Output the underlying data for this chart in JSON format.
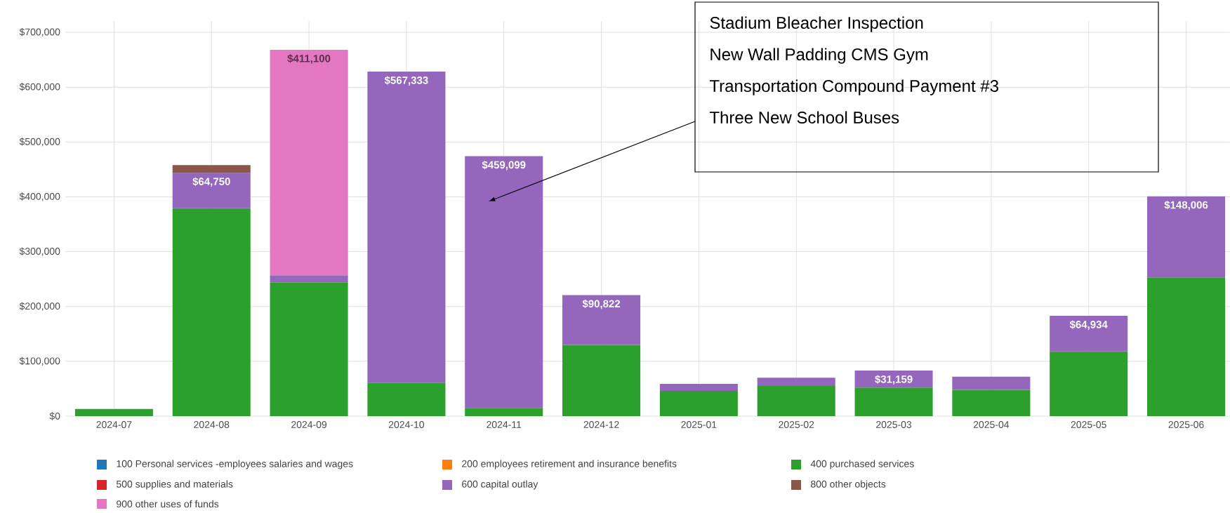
{
  "chart_data": {
    "type": "bar",
    "stacked": true,
    "grid": true,
    "legend": "bottom",
    "categories": [
      "2024-07",
      "2024-08",
      "2024-09",
      "2024-10",
      "2024-11",
      "2024-12",
      "2025-01",
      "2025-02",
      "2025-03",
      "2025-04",
      "2025-05",
      "2025-06"
    ],
    "ylim": [
      0,
      720000
    ],
    "yticks": [
      {
        "value": 0,
        "label": "$0"
      },
      {
        "value": 100000,
        "label": "$100,000"
      },
      {
        "value": 200000,
        "label": "$200,000"
      },
      {
        "value": 300000,
        "label": "$300,000"
      },
      {
        "value": 400000,
        "label": "$400,000"
      },
      {
        "value": 500000,
        "label": "$500,000"
      },
      {
        "value": 600000,
        "label": "$600,000"
      },
      {
        "value": 700000,
        "label": "$700,000"
      }
    ],
    "series": [
      {
        "name": "100 Personal services -employees salaries and wages",
        "color": "#1f77b4",
        "values": [
          null,
          null,
          null,
          null,
          null,
          null,
          null,
          null,
          null,
          null,
          null,
          null
        ]
      },
      {
        "name": "200 employees retirement and insurance benefits",
        "color": "#ff7f0e",
        "values": [
          null,
          null,
          null,
          null,
          null,
          null,
          null,
          null,
          null,
          null,
          null,
          null
        ]
      },
      {
        "name": "400 purchased services",
        "color": "#2ca02c",
        "values": [
          13000,
          379000,
          244000,
          61000,
          15000,
          130000,
          46000,
          55000,
          52000,
          48000,
          118000,
          253000
        ]
      },
      {
        "name": "500 supplies and materials",
        "color": "#d62728",
        "values": [
          null,
          null,
          null,
          null,
          null,
          null,
          null,
          null,
          null,
          null,
          null,
          null
        ]
      },
      {
        "name": "600 capital outlay",
        "color": "#9467bd",
        "values": [
          null,
          64750,
          13000,
          567333,
          459099,
          90822,
          13000,
          15000,
          31159,
          24000,
          64934,
          148006
        ],
        "value_labels": [
          null,
          "$64,750",
          null,
          "$567,333",
          "$459,099",
          "$90,822",
          null,
          null,
          "$31,159",
          null,
          "$64,934",
          "$148,006"
        ]
      },
      {
        "name": "800 other objects",
        "color": "#8c564b",
        "values": [
          null,
          14000,
          null,
          null,
          null,
          null,
          null,
          null,
          null,
          null,
          null,
          null
        ]
      },
      {
        "name": "900 other uses of funds",
        "color": "#e377c2",
        "values": [
          null,
          null,
          411100,
          null,
          null,
          null,
          null,
          null,
          null,
          null,
          null,
          null
        ],
        "value_labels": [
          null,
          null,
          "$411,100",
          null,
          null,
          null,
          null,
          null,
          null,
          null,
          null,
          null
        ]
      }
    ],
    "annotations": [
      "Stadium Bleacher Inspection",
      "New Wall Padding CMS Gym",
      "Transportation Compound Payment #3",
      "Three New School Buses"
    ]
  }
}
